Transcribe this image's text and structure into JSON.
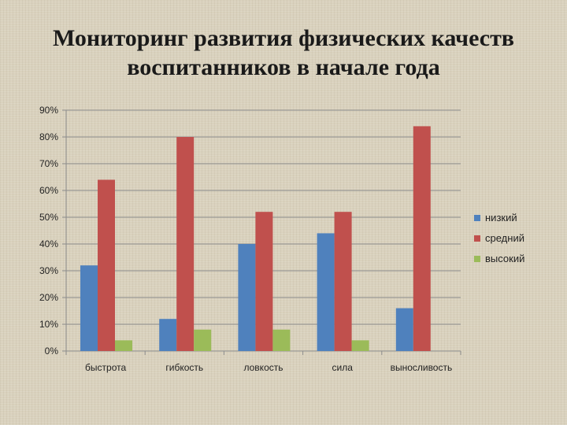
{
  "slide": {
    "title_line1": "Мониторинг развития физических качеств",
    "title_line2": "воспитанников в начале года"
  },
  "chart_data": {
    "type": "bar",
    "title": "Мониторинг развития физических качеств воспитанников в начале года",
    "categories": [
      "быстрота",
      "гибкость",
      "ловкость",
      "сила",
      "выносливость"
    ],
    "series": [
      {
        "name": "низкий",
        "color": "#4f81bd",
        "values": [
          32,
          12,
          40,
          44,
          16
        ]
      },
      {
        "name": "средний",
        "color": "#c0504d",
        "values": [
          64,
          80,
          52,
          52,
          84
        ]
      },
      {
        "name": "высокий",
        "color": "#9bbb59",
        "values": [
          4,
          8,
          8,
          4,
          0
        ]
      }
    ],
    "y_ticks": [
      "0%",
      "10%",
      "20%",
      "30%",
      "40%",
      "50%",
      "60%",
      "70%",
      "80%",
      "90%"
    ],
    "ylim": [
      0,
      90
    ],
    "unit": "%",
    "grid": true,
    "legend_position": "right"
  }
}
